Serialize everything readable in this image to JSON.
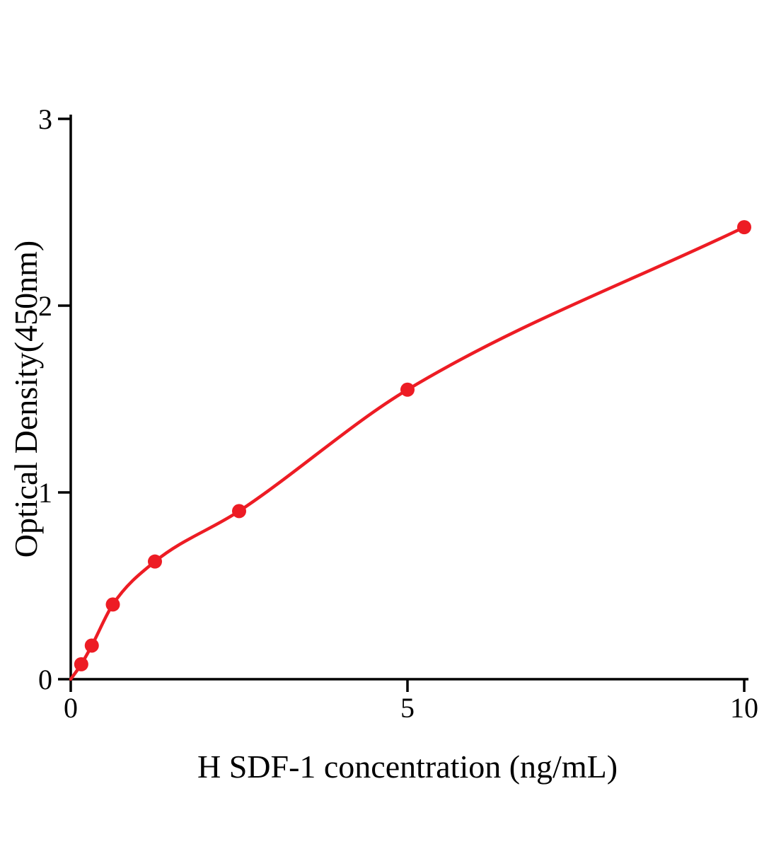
{
  "chart_data": {
    "type": "scatter",
    "title": "",
    "xlabel": "H SDF-1 concentration (ng/mL)",
    "ylabel": "Optical Density(450nm)",
    "xlim": [
      0,
      10
    ],
    "ylim": [
      0,
      3
    ],
    "xticks": [
      0,
      5,
      10
    ],
    "yticks": [
      0,
      1,
      2,
      3
    ],
    "grid": false,
    "legend": "none",
    "curve_starts_at_origin": true,
    "points": [
      {
        "x": 0.156,
        "y": 0.08
      },
      {
        "x": 0.3125,
        "y": 0.18
      },
      {
        "x": 0.625,
        "y": 0.4
      },
      {
        "x": 1.25,
        "y": 0.63
      },
      {
        "x": 2.5,
        "y": 0.9
      },
      {
        "x": 5,
        "y": 1.55
      },
      {
        "x": 10,
        "y": 2.42
      }
    ],
    "colors": {
      "series": "#ed1c24",
      "axis": "#000000",
      "background": "#ffffff"
    }
  }
}
